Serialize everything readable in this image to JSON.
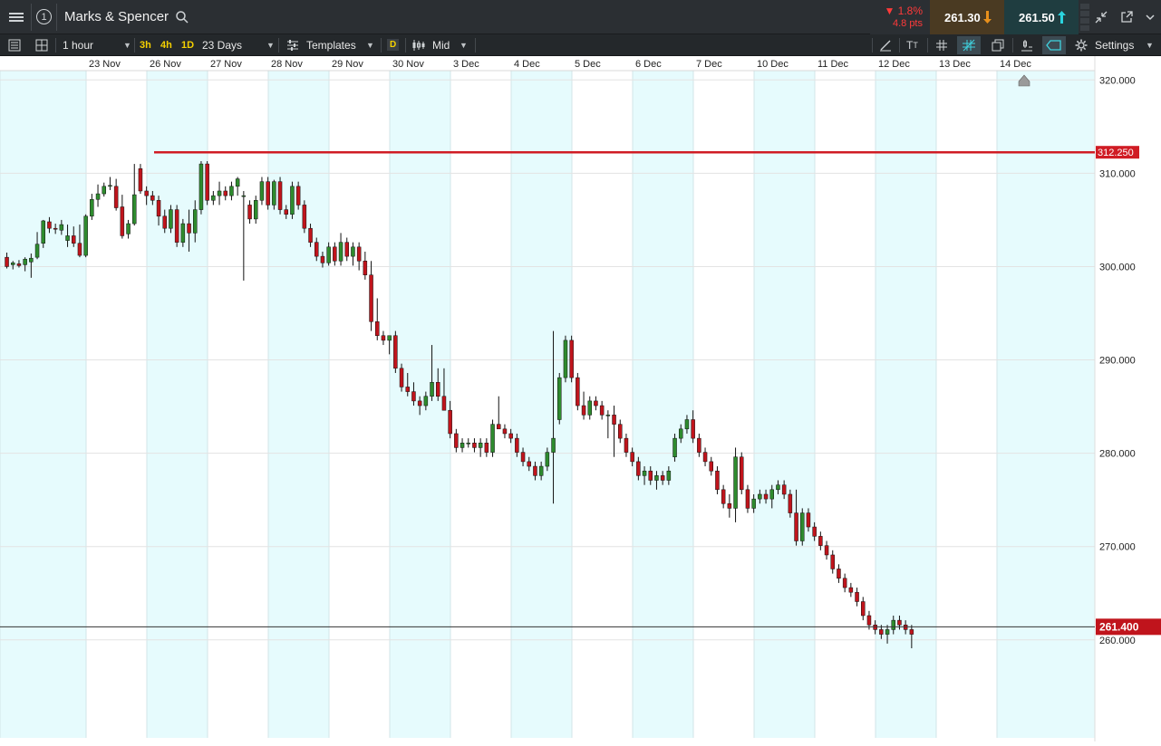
{
  "header": {
    "instrument_name": "Marks & Spencer",
    "tab_number": "1",
    "change_pct": "▼ 1.8%",
    "change_pts": "4.8 pts",
    "bid": "261.30",
    "ask": "261.50"
  },
  "toolbar": {
    "interval": "1 hour",
    "quick_3h": "3h",
    "quick_4h": "4h",
    "quick_1d": "1D",
    "range": "23 Days",
    "templates": "Templates",
    "d_badge": "D",
    "price_type": "Mid",
    "settings": "Settings"
  },
  "colors": {
    "up": "#2e8b2e",
    "down": "#c0141c",
    "band": "#e6fbfd",
    "hline": "#d01c24",
    "current_line": "#333333"
  },
  "icons": [
    "menu-icon",
    "search-icon",
    "arrow-down-icon",
    "arrow-up-icon",
    "minimize-icon",
    "popout-icon",
    "list-icon",
    "layout-icon",
    "drawing-icon",
    "text-icon",
    "grid-icon",
    "crosshair-icon",
    "copy-icon",
    "indicator-icon",
    "tag-icon",
    "gear-icon",
    "triangle-icon"
  ],
  "chart_data": {
    "type": "candlestick",
    "x_labels": [
      "23 Nov",
      "26 Nov",
      "27 Nov",
      "28 Nov",
      "29 Nov",
      "30 Nov",
      "3 Dec",
      "4 Dec",
      "5 Dec",
      "6 Dec",
      "7 Dec",
      "10 Dec",
      "11 Dec",
      "12 Dec",
      "13 Dec",
      "14 Dec"
    ],
    "y_ticks": [
      "320.000",
      "310.000",
      "300.000",
      "290.000",
      "280.000",
      "270.000",
      "260.000"
    ],
    "ylim": [
      249.5,
      321
    ],
    "horizontal_line": {
      "label": "312.250",
      "value": 312.25,
      "start_day": "26 Nov"
    },
    "current_price": {
      "label": "261.400",
      "value": 261.4
    },
    "bars_per_day": 10,
    "candles": [
      [
        301,
        301.5,
        299.8,
        300
      ],
      [
        300.2,
        300.6,
        299.7,
        300.4
      ],
      [
        300.3,
        300.7,
        299.9,
        300.1
      ],
      [
        300.2,
        301,
        299.5,
        300.8
      ],
      [
        300.5,
        301.4,
        298.8,
        300.9
      ],
      [
        301,
        303.7,
        300.8,
        302.4
      ],
      [
        302.5,
        305,
        302,
        304.9
      ],
      [
        304.8,
        305.3,
        303.6,
        304.1
      ],
      [
        304.1,
        304.6,
        303.5,
        304
      ],
      [
        303.9,
        305,
        303.4,
        304.5
      ],
      [
        302.8,
        304.5,
        302.1,
        303.3
      ],
      [
        303.3,
        304.3,
        302.1,
        302.5
      ],
      [
        302.5,
        304.5,
        301,
        301.2
      ],
      [
        301.2,
        305.6,
        301,
        305.4
      ],
      [
        305.4,
        307.8,
        305,
        307.2
      ],
      [
        307.2,
        308.8,
        306.4,
        307.8
      ],
      [
        307.8,
        309,
        307.5,
        308.6
      ],
      [
        308.6,
        309.6,
        308.2,
        308.7
      ],
      [
        308.6,
        309.4,
        306,
        306.3
      ],
      [
        306.4,
        307.7,
        303,
        303.3
      ],
      [
        303.5,
        305,
        303,
        304.6
      ],
      [
        304.6,
        311,
        304.4,
        307.7
      ],
      [
        310.5,
        311,
        307.8,
        308.1
      ],
      [
        308.1,
        308.6,
        306.6,
        307.6
      ],
      [
        307.6,
        308.1,
        306.6,
        307.1
      ],
      [
        307.1,
        307.6,
        304.4,
        305.4
      ],
      [
        305.4,
        306.1,
        303.6,
        304.1
      ],
      [
        304.1,
        306.6,
        303.6,
        306.1
      ],
      [
        306.1,
        306.6,
        302.1,
        302.6
      ],
      [
        302.6,
        305.1,
        302.1,
        304.6
      ],
      [
        304.6,
        306.1,
        301.6,
        303.6
      ],
      [
        303.6,
        307.1,
        302.6,
        306.1
      ],
      [
        306.1,
        311.3,
        305.6,
        311
      ],
      [
        311,
        311.3,
        306.6,
        307.1
      ],
      [
        307.1,
        308.1,
        306.6,
        307.6
      ],
      [
        307.6,
        309.1,
        306.6,
        308.1
      ],
      [
        308.1,
        308.6,
        307.1,
        307.6
      ],
      [
        307.6,
        309.1,
        307.1,
        308.6
      ],
      [
        308.6,
        309.6,
        307.6,
        309.4
      ],
      [
        307.6,
        308.1,
        298.5,
        307.6
      ],
      [
        306.6,
        307.1,
        304.6,
        305.1
      ],
      [
        305.1,
        307.6,
        304.6,
        307.1
      ],
      [
        307.1,
        309.6,
        306.6,
        309.1
      ],
      [
        309.1,
        309.6,
        306.1,
        306.6
      ],
      [
        306.6,
        309.3,
        306.1,
        309.1
      ],
      [
        309.1,
        309.6,
        305.6,
        306.1
      ],
      [
        306.1,
        306.6,
        305.1,
        305.6
      ],
      [
        305.6,
        309.1,
        305.1,
        308.6
      ],
      [
        308.6,
        309.1,
        306.1,
        306.6
      ],
      [
        306.6,
        307.1,
        303.6,
        304.1
      ],
      [
        304.1,
        304.6,
        302.1,
        302.6
      ],
      [
        302.6,
        303.1,
        300.6,
        301.1
      ],
      [
        301.1,
        301.6,
        299.9,
        300.4
      ],
      [
        300.4,
        302.6,
        300.1,
        302.1
      ],
      [
        302.1,
        302.6,
        300.1,
        300.6
      ],
      [
        300.6,
        303.6,
        300.1,
        302.6
      ],
      [
        302.6,
        303.1,
        300.6,
        301.1
      ],
      [
        301.1,
        302.6,
        300.1,
        302.1
      ],
      [
        302.1,
        302.6,
        299.6,
        300.6
      ],
      [
        300.6,
        301.6,
        298.6,
        299.1
      ],
      [
        299.1,
        300.6,
        293.1,
        294.1
      ],
      [
        294.1,
        296.6,
        292.1,
        292.6
      ],
      [
        292.6,
        293.1,
        291.6,
        292.1
      ],
      [
        292.1,
        292.6,
        290.6,
        292.6
      ],
      [
        292.6,
        293.1,
        288.6,
        289.1
      ],
      [
        289.1,
        289.6,
        286.6,
        287.1
      ],
      [
        287.1,
        288.6,
        286.1,
        286.6
      ],
      [
        286.6,
        287.6,
        285.1,
        285.6
      ],
      [
        285.6,
        286.1,
        284.1,
        285.1
      ],
      [
        285.1,
        286.6,
        284.6,
        286.1
      ],
      [
        286.1,
        291.6,
        285.6,
        287.6
      ],
      [
        287.6,
        289.1,
        285.6,
        286.1
      ],
      [
        286.1,
        289.1,
        284.6,
        284.6
      ],
      [
        284.6,
        285.6,
        281.6,
        282.1
      ],
      [
        282.1,
        282.6,
        280.1,
        280.6
      ],
      [
        280.6,
        281.6,
        280.1,
        281.1
      ],
      [
        281.1,
        281.6,
        280.6,
        281.1
      ],
      [
        281.1,
        281.6,
        280.1,
        280.6
      ],
      [
        280.6,
        281.6,
        279.6,
        281.1
      ],
      [
        281.1,
        281.6,
        279.6,
        280.1
      ],
      [
        280.1,
        283.6,
        279.6,
        283.1
      ],
      [
        283.1,
        286.1,
        282.6,
        282.6
      ],
      [
        282.6,
        283.1,
        281.6,
        282.1
      ],
      [
        282.1,
        282.6,
        281.1,
        281.6
      ],
      [
        281.6,
        282.1,
        279.6,
        280.1
      ],
      [
        280.1,
        280.6,
        278.6,
        279.1
      ],
      [
        279.1,
        279.6,
        278.1,
        278.6
      ],
      [
        278.6,
        279.1,
        277.1,
        277.6
      ],
      [
        277.6,
        279.1,
        277.1,
        278.6
      ],
      [
        278.6,
        280.6,
        278.1,
        280.1
      ],
      [
        280.1,
        293.1,
        274.6,
        281.6
      ],
      [
        283.6,
        288.6,
        283.1,
        288.1
      ],
      [
        288.1,
        292.6,
        287.6,
        292.1
      ],
      [
        292.1,
        292.6,
        287.6,
        288.1
      ],
      [
        288.1,
        288.6,
        284.6,
        285.1
      ],
      [
        285.1,
        286.6,
        283.6,
        284.1
      ],
      [
        284.1,
        286.1,
        283.6,
        285.6
      ],
      [
        285.6,
        286.1,
        284.6,
        285.1
      ],
      [
        285.1,
        285.6,
        283.6,
        284.1
      ],
      [
        284.1,
        284.6,
        281.6,
        284.1
      ],
      [
        284.1,
        285.1,
        279.6,
        283.1
      ],
      [
        283.1,
        283.6,
        281.1,
        281.6
      ],
      [
        281.6,
        282.1,
        279.6,
        280.1
      ],
      [
        280.1,
        280.6,
        278.6,
        279.1
      ],
      [
        279.1,
        279.6,
        277.1,
        277.6
      ],
      [
        277.6,
        278.6,
        276.6,
        278.1
      ],
      [
        278.1,
        278.6,
        276.6,
        277.1
      ],
      [
        277.1,
        278.1,
        276.1,
        277.6
      ],
      [
        277.6,
        278.1,
        276.6,
        277.1
      ],
      [
        277.1,
        278.6,
        276.6,
        278.1
      ],
      [
        279.6,
        282.1,
        279.1,
        281.6
      ],
      [
        281.6,
        283.1,
        281.1,
        282.6
      ],
      [
        282.6,
        284.1,
        282.1,
        283.6
      ],
      [
        283.6,
        284.6,
        281.1,
        281.6
      ],
      [
        281.6,
        282.1,
        279.6,
        280.1
      ],
      [
        280.1,
        280.6,
        278.6,
        279.1
      ],
      [
        279.1,
        279.6,
        277.6,
        278.1
      ],
      [
        278.1,
        278.6,
        275.6,
        276.1
      ],
      [
        276.1,
        276.6,
        274.1,
        274.6
      ],
      [
        274.6,
        275.6,
        273.1,
        274.1
      ],
      [
        274.1,
        280.6,
        272.6,
        279.6
      ],
      [
        279.6,
        280.1,
        275.6,
        276.1
      ],
      [
        276.1,
        276.6,
        273.6,
        274.1
      ],
      [
        274.1,
        275.6,
        273.6,
        275.1
      ],
      [
        275.1,
        276.1,
        274.6,
        275.6
      ],
      [
        275.6,
        276.1,
        274.6,
        275.1
      ],
      [
        275.1,
        276.6,
        274.1,
        276.1
      ],
      [
        276.1,
        277.1,
        275.6,
        276.6
      ],
      [
        276.6,
        277.1,
        275.1,
        275.6
      ],
      [
        275.6,
        276.1,
        273.1,
        273.6
      ],
      [
        273.6,
        276.1,
        270.1,
        270.6
      ],
      [
        270.6,
        274.1,
        270.1,
        273.6
      ],
      [
        273.6,
        274.1,
        271.6,
        272.1
      ],
      [
        272.1,
        272.6,
        270.6,
        271.1
      ],
      [
        271.1,
        271.6,
        269.6,
        270.1
      ],
      [
        270.1,
        270.6,
        268.6,
        269.1
      ],
      [
        269.1,
        269.6,
        267.1,
        267.6
      ],
      [
        267.6,
        268.1,
        266.1,
        266.6
      ],
      [
        266.6,
        267.1,
        265.1,
        265.6
      ],
      [
        265.6,
        266.1,
        264.6,
        265.1
      ],
      [
        265.1,
        265.6,
        263.6,
        264.1
      ],
      [
        264.1,
        264.6,
        262.1,
        262.6
      ],
      [
        262.6,
        263.1,
        261.1,
        261.6
      ],
      [
        261.6,
        262.1,
        260.6,
        261.1
      ],
      [
        261.1,
        261.6,
        260.1,
        260.6
      ],
      [
        260.6,
        261.6,
        259.6,
        261.1
      ],
      [
        261.1,
        262.6,
        260.6,
        262.1
      ],
      [
        262.1,
        262.6,
        261.1,
        261.6
      ],
      [
        261.6,
        262.1,
        260.6,
        261.1
      ],
      [
        261.1,
        261.6,
        259.1,
        260.6
      ]
    ]
  }
}
